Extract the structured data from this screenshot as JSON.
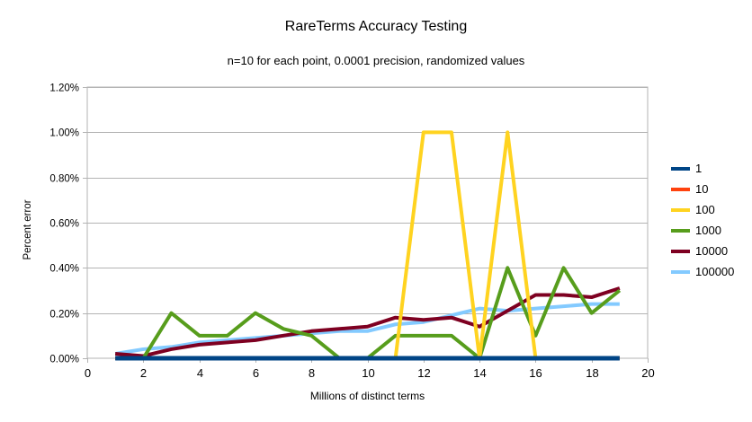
{
  "chart_data": {
    "type": "line",
    "title": "RareTerms Accuracy Testing",
    "subtitle": "n=10 for each point, 0.0001 precision, randomized values",
    "xlabel": "Millions of distinct terms",
    "ylabel": "Percent error",
    "xlim": [
      0,
      20
    ],
    "ylim": [
      0,
      1.2
    ],
    "grid": "horizontal",
    "legend_position": "right",
    "axis_color": "#b3b3b3",
    "gridline_color": "#b3b3b3",
    "xticks": {
      "values": [
        0,
        2,
        4,
        6,
        8,
        10,
        12,
        14,
        16,
        18,
        20
      ],
      "labels": [
        "0",
        "2",
        "4",
        "6",
        "8",
        "10",
        "12",
        "14",
        "16",
        "18",
        "20"
      ]
    },
    "yticks": {
      "values": [
        0,
        0.2,
        0.4,
        0.6,
        0.8,
        1.0,
        1.2
      ],
      "labels": [
        "0.00%",
        "0.20%",
        "0.40%",
        "0.60%",
        "0.80%",
        "1.00%",
        "1.20%"
      ]
    },
    "x": [
      1,
      2,
      3,
      4,
      5,
      6,
      7,
      8,
      9,
      10,
      11,
      12,
      13,
      14,
      15,
      16,
      17,
      18,
      19
    ],
    "series": [
      {
        "name": "1",
        "color": "#004586",
        "stroke_width": 5,
        "values": [
          0,
          0,
          0,
          0,
          0,
          0,
          0,
          0,
          0,
          0,
          0,
          0,
          0,
          0,
          0,
          0,
          0,
          0,
          0
        ]
      },
      {
        "name": "10",
        "color": "#FF420E",
        "stroke_width": 4,
        "values": [
          0,
          0,
          0,
          0,
          0,
          0,
          0,
          0,
          0,
          0,
          0,
          0,
          0,
          0,
          0,
          0,
          0,
          0,
          0
        ]
      },
      {
        "name": "100",
        "color": "#FFD320",
        "stroke_width": 4,
        "values": [
          0,
          0,
          0,
          0,
          0,
          0,
          0,
          0,
          0,
          0,
          0,
          1.0,
          1.0,
          0,
          1.0,
          0,
          0,
          0,
          0
        ]
      },
      {
        "name": "1000",
        "color": "#579D1C",
        "stroke_width": 4,
        "values": [
          0,
          0,
          0.2,
          0.1,
          0.1,
          0.2,
          0.13,
          0.1,
          0,
          0,
          0.1,
          0.1,
          0.1,
          0,
          0.4,
          0.1,
          0.4,
          0.2,
          0.3
        ]
      },
      {
        "name": "10000",
        "color": "#7E0021",
        "stroke_width": 4,
        "values": [
          0.02,
          0.01,
          0.04,
          0.06,
          0.07,
          0.08,
          0.1,
          0.12,
          0.13,
          0.14,
          0.18,
          0.17,
          0.18,
          0.14,
          0.21,
          0.28,
          0.28,
          0.27,
          0.31
        ]
      },
      {
        "name": "100000",
        "color": "#83CAFF",
        "stroke_width": 4,
        "values": [
          0.02,
          0.04,
          0.05,
          0.07,
          0.08,
          0.09,
          0.1,
          0.11,
          0.12,
          0.12,
          0.15,
          0.16,
          0.19,
          0.22,
          0.21,
          0.22,
          0.23,
          0.24,
          0.24
        ]
      }
    ]
  }
}
